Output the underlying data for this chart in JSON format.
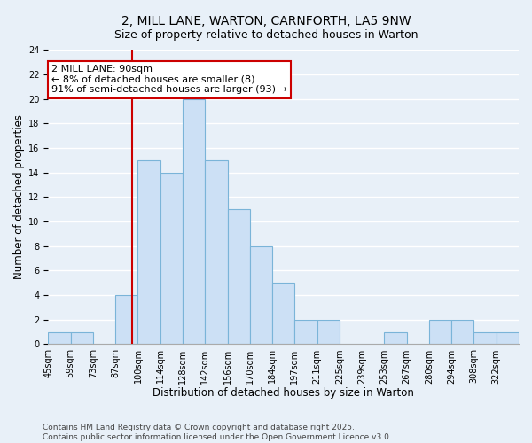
{
  "title": "2, MILL LANE, WARTON, CARNFORTH, LA5 9NW",
  "subtitle": "Size of property relative to detached houses in Warton",
  "xlabel": "Distribution of detached houses by size in Warton",
  "ylabel": "Number of detached properties",
  "bin_labels": [
    "45sqm",
    "59sqm",
    "73sqm",
    "87sqm",
    "100sqm",
    "114sqm",
    "128sqm",
    "142sqm",
    "156sqm",
    "170sqm",
    "184sqm",
    "197sqm",
    "211sqm",
    "225sqm",
    "239sqm",
    "253sqm",
    "267sqm",
    "280sqm",
    "294sqm",
    "308sqm",
    "322sqm"
  ],
  "bar_heights": [
    1,
    1,
    0,
    4,
    15,
    14,
    20,
    15,
    11,
    8,
    5,
    2,
    2,
    0,
    0,
    1,
    0,
    2,
    2,
    1,
    1
  ],
  "bar_color": "#cce0f5",
  "bar_edge_color": "#7ab4d8",
  "property_line_index": 3.75,
  "property_line_color": "#cc0000",
  "annotation_text": "2 MILL LANE: 90sqm\n← 8% of detached houses are smaller (8)\n91% of semi-detached houses are larger (93) →",
  "annotation_box_color": "#ffffff",
  "annotation_box_edge": "#cc0000",
  "ylim": [
    0,
    24
  ],
  "yticks": [
    0,
    2,
    4,
    6,
    8,
    10,
    12,
    14,
    16,
    18,
    20,
    22,
    24
  ],
  "background_color": "#e8f0f8",
  "grid_color": "#ffffff",
  "footer_text": "Contains HM Land Registry data © Crown copyright and database right 2025.\nContains public sector information licensed under the Open Government Licence v3.0.",
  "title_fontsize": 10,
  "subtitle_fontsize": 9,
  "xlabel_fontsize": 8.5,
  "ylabel_fontsize": 8.5,
  "tick_fontsize": 7,
  "annotation_fontsize": 8,
  "footer_fontsize": 6.5
}
